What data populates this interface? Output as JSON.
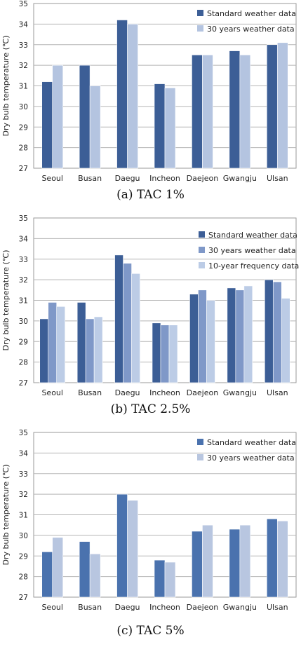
{
  "chart_data": [
    {
      "type": "bar",
      "caption": "(a)  TAC  1%",
      "ylabel": "Dry bulb temperature (℃)",
      "ylim": [
        27,
        35
      ],
      "yticks": [
        "27",
        "28",
        "29",
        "30",
        "31",
        "32",
        "33",
        "34",
        "35"
      ],
      "categories": [
        "Seoul",
        "Busan",
        "Daegu",
        "Incheon",
        "Daejeon",
        "Gwangju",
        "Ulsan"
      ],
      "series": [
        {
          "name": "Standard weather data",
          "color": "#3c5e96",
          "values": [
            31.2,
            32.0,
            34.2,
            31.1,
            32.5,
            32.7,
            33.0
          ]
        },
        {
          "name": "30 years weather data",
          "color": "#b4c4e0",
          "values": [
            32.0,
            31.0,
            34.0,
            30.9,
            32.5,
            32.5,
            33.1
          ]
        }
      ],
      "grid": true,
      "legend": "top-right"
    },
    {
      "type": "bar",
      "caption": "(b)  TAC  2.5%",
      "ylabel": "Dry bulb temperature (℃)",
      "ylim": [
        27,
        35
      ],
      "yticks": [
        "27",
        "28",
        "29",
        "30",
        "31",
        "32",
        "33",
        "34",
        "35"
      ],
      "categories": [
        "Seoul",
        "Busan",
        "Daegu",
        "Incheon",
        "Daejeon",
        "Gwangju",
        "Ulsan"
      ],
      "series": [
        {
          "name": "Standard weather data",
          "color": "#3c5e96",
          "values": [
            30.1,
            30.9,
            33.2,
            29.9,
            31.3,
            31.6,
            32.0
          ]
        },
        {
          "name": "30 years weather data",
          "color": "#7f98c8",
          "values": [
            30.9,
            30.1,
            32.8,
            29.8,
            31.5,
            31.5,
            31.9
          ]
        },
        {
          "name": "10-year frequency data",
          "color": "#bccce6",
          "values": [
            30.7,
            30.2,
            32.3,
            29.8,
            31.0,
            31.7,
            31.1
          ]
        }
      ],
      "grid": true,
      "legend": "top-right"
    },
    {
      "type": "bar",
      "caption": "(c)  TAC  5%",
      "ylabel": "Dry bulb temperature (℃)",
      "ylim": [
        27,
        35
      ],
      "yticks": [
        "27",
        "28",
        "29",
        "30",
        "31",
        "32",
        "33",
        "34",
        "35"
      ],
      "categories": [
        "Seoul",
        "Busan",
        "Daegu",
        "Incheon",
        "Daejeon",
        "Gwangju",
        "Ulsan"
      ],
      "series": [
        {
          "name": "Standard weather data",
          "color": "#4a72ae",
          "values": [
            29.2,
            29.7,
            32.0,
            28.8,
            30.2,
            30.3,
            30.8
          ]
        },
        {
          "name": "30 years weather data",
          "color": "#b8c6e0",
          "values": [
            29.9,
            29.1,
            31.7,
            28.7,
            30.5,
            30.5,
            30.7
          ]
        }
      ],
      "grid": true,
      "legend": "top-right"
    }
  ]
}
